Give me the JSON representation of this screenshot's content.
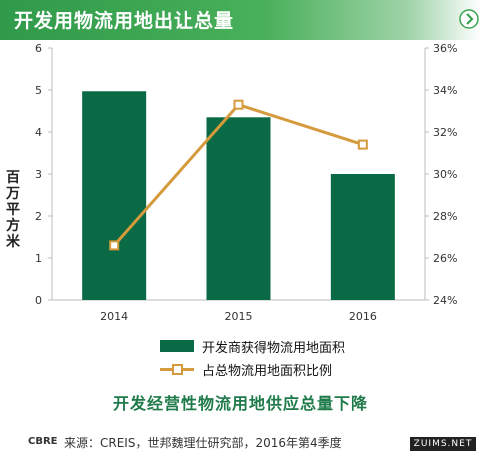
{
  "title": "开发用物流用地出让总量",
  "ylabel_chars": [
    "百",
    "万",
    "平",
    "方",
    "米"
  ],
  "subtitle": "开发经营性物流用地供应总量下降",
  "brand": "CBRE",
  "source": "来源：CREIS，世邦魏理仕研究部，2016年第4季度",
  "watermark": "ZUIMS.NET",
  "colors": {
    "bar": "#0a6a45",
    "line": "#d59a3b",
    "title_bg": "#3aa350"
  },
  "legend": {
    "bar_label": "开发商获得物流用地面积",
    "line_label": "占总物流用地面积比例"
  },
  "chart_data": {
    "type": "bar",
    "categories": [
      "2014",
      "2015",
      "2016"
    ],
    "series": [
      {
        "name": "开发商获得物流用地面积",
        "type": "bar",
        "axis": "left",
        "values": [
          4.97,
          4.35,
          3.0
        ]
      },
      {
        "name": "占总物流用地面积比例",
        "type": "line",
        "axis": "right",
        "values": [
          0.266,
          0.333,
          0.314
        ]
      }
    ],
    "ylim": [
      0,
      6
    ],
    "y2lim": [
      0.24,
      0.36
    ],
    "yticks": [
      "0",
      "1",
      "2",
      "3",
      "4",
      "5",
      "6"
    ],
    "y2ticks": [
      "24%",
      "26%",
      "28%",
      "30%",
      "32%",
      "34%",
      "36%"
    ],
    "ylabel": "百万平方米",
    "grid": false,
    "legend_position": "bottom"
  }
}
